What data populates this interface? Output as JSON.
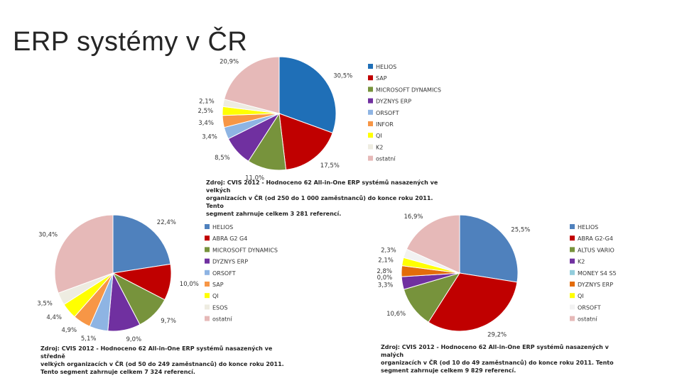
{
  "slide": {
    "title": "ERP systémy v ČR"
  },
  "chart_data": [
    {
      "type": "pie",
      "categories": [
        "HELIOS",
        "SAP",
        "MICROSOFT DYNAMICS",
        "DYZNYS ERP",
        "ORSOFT",
        "INFOR",
        "QI",
        "K2",
        "ostatní"
      ],
      "values": [
        30.5,
        17.5,
        11.0,
        8.5,
        3.4,
        3.4,
        2.5,
        2.1,
        20.9
      ],
      "labels": [
        "30,5%",
        "17,5%",
        "11,0%",
        "8,5%",
        "3,4%",
        "3,4%",
        "2,5%",
        "2,1%",
        "20,9%"
      ],
      "colors": [
        "#1f6fb7",
        "#c00000",
        "#77933c",
        "#7030a0",
        "#8eb4e3",
        "#f79646",
        "#ffff00",
        "#eeece1",
        "#e6b9b8"
      ],
      "caption": [
        "Zdroj: CVIS 2012 - Hodnoceno 62 All-in-One ERP systémů nasazených ve velkých",
        "organizacích v ČR (od 250 do 1 000 zaměstnanců) do konce roku 2011. Tento",
        "segment zahrnuje celkem 3 281 referencí."
      ],
      "legend_position": "right"
    },
    {
      "type": "pie",
      "categories": [
        "HELIOS",
        "ABRA G2 G4",
        "MICROSOFT DYNAMICS",
        "DYZNYS ERP",
        "ORSOFT",
        "SAP",
        "QI",
        "ESOS",
        "ostatní"
      ],
      "values": [
        22.4,
        10.0,
        9.7,
        9.0,
        5.1,
        4.9,
        4.4,
        3.5,
        30.4
      ],
      "labels": [
        "22,4%",
        "10,0%",
        "9,7%",
        "9,0%",
        "5,1%",
        "4,9%",
        "4,4%",
        "3,5%",
        "30,4%"
      ],
      "colors": [
        "#4f81bd",
        "#c00000",
        "#77933c",
        "#7030a0",
        "#8eb4e3",
        "#f79646",
        "#ffff00",
        "#eeece1",
        "#e6b9b8"
      ],
      "caption": [
        "Zdroj: CVIS 2012 - Hodnoceno 62 All-in-One ERP systémů nasazených ve středně",
        "velkých organizacích v ČR (od 50 do 249 zaměstnanců) do konce roku 2011.",
        "Tento segment zahrnuje celkem 7 324 referencí."
      ],
      "legend_position": "right"
    },
    {
      "type": "pie",
      "categories": [
        "HELIOS",
        "ABRA G2-G4",
        "ALTUS VARIO",
        "K2",
        "MONEY S4 S5",
        "DYZNYS ERP",
        "QI",
        "ORSOFT",
        "ostatní"
      ],
      "values": [
        25.5,
        29.2,
        10.6,
        3.3,
        0.0,
        2.8,
        2.1,
        2.3,
        16.9
      ],
      "labels": [
        "25,5%",
        "29,2%",
        "10,6%",
        "3,3%",
        "0,0%",
        "2,8%",
        "2,1%",
        "2,3%",
        "16,9%"
      ],
      "colors": [
        "#4f81bd",
        "#c00000",
        "#77933c",
        "#7030a0",
        "#92cddc",
        "#e36c0a",
        "#ffff00",
        "#f2f2f2",
        "#e6b9b8"
      ],
      "caption": [
        "Zdroj: CVIS 2012 - Hodnoceno 62 All-in-One ERP systémů nasazených v malých",
        "organizacích v ČR (od 10 do 49 zaměstnanců) do konce roku 2011. Tento",
        "segment zahrnuje celkem 9 829 referencí."
      ],
      "legend_position": "right"
    }
  ]
}
